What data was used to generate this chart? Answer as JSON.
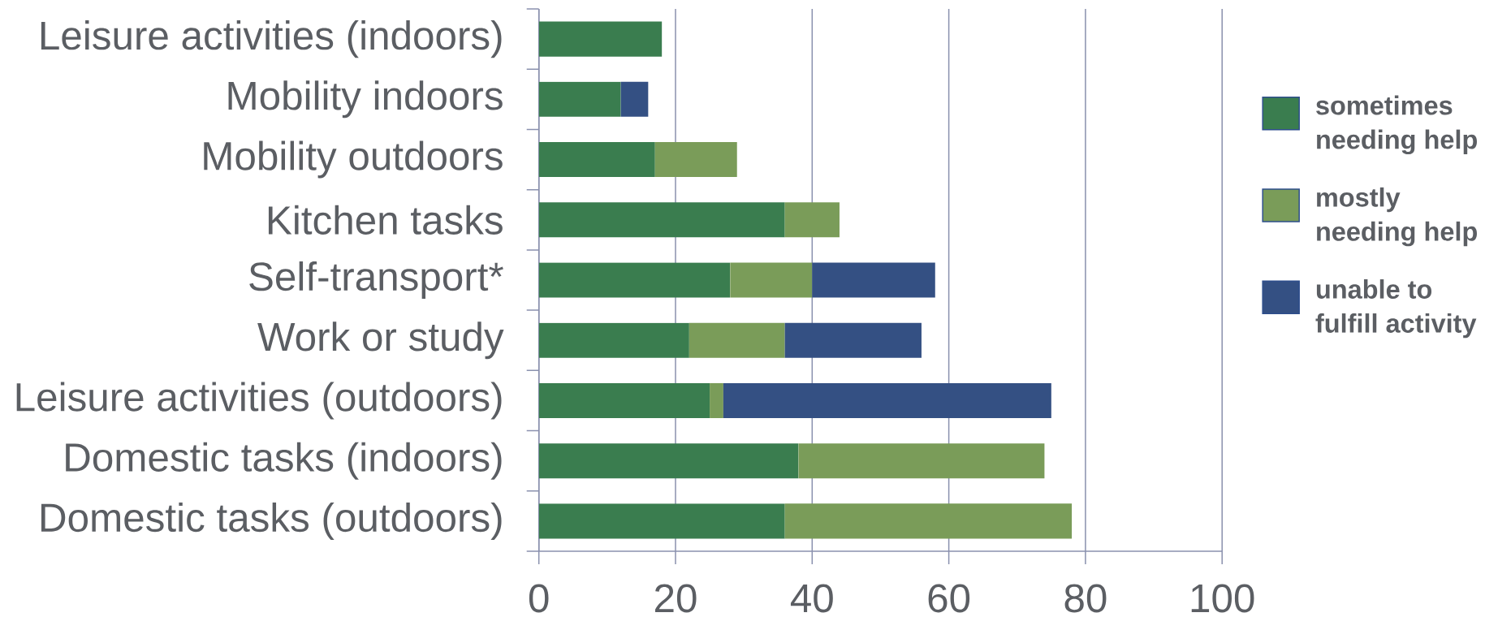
{
  "chart_data": {
    "type": "bar",
    "orientation": "horizontal",
    "stacked": true,
    "categories": [
      "Leisure activities (indoors)",
      "Mobility indoors",
      "Mobility outdoors",
      "Kitchen tasks",
      "Self-transport*",
      "Work or study",
      "Leisure activities (outdoors)",
      "Domestic tasks (indoors)",
      "Domestic tasks (outdoors)"
    ],
    "series": [
      {
        "name": "sometimes needing help",
        "color": "#3a7d4f",
        "values": [
          18,
          12,
          17,
          36,
          28,
          22,
          25,
          38,
          36
        ]
      },
      {
        "name": "mostly needing help",
        "color": "#7a9c59",
        "values": [
          null,
          null,
          12,
          8,
          12,
          14,
          2,
          36,
          42
        ]
      },
      {
        "name": "unable to fulfill activity",
        "color": "#345083",
        "values": [
          null,
          4,
          null,
          null,
          18,
          20,
          48,
          null,
          null
        ]
      }
    ],
    "xlim": [
      0,
      100
    ],
    "xticks": [
      0,
      20,
      40,
      60,
      80,
      100
    ],
    "grid": "x",
    "legend": "right"
  }
}
